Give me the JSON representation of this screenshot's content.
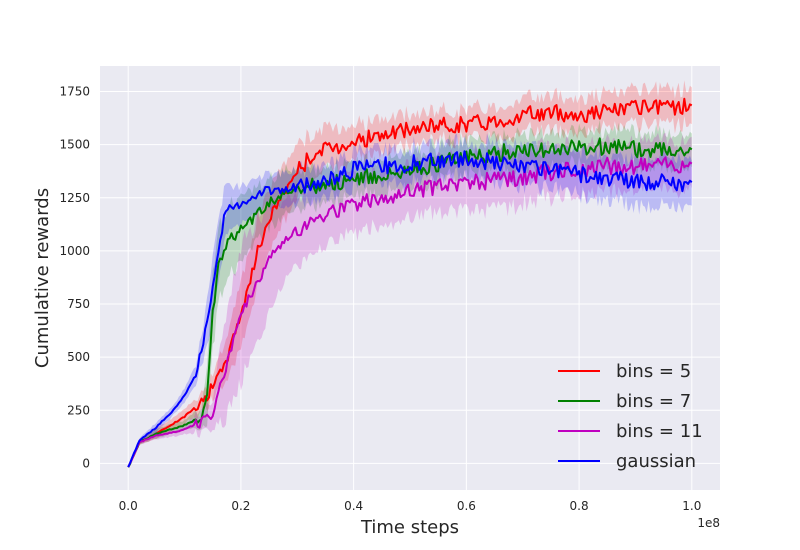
{
  "chart_data": {
    "type": "line",
    "title": "",
    "xlabel": "Time steps",
    "ylabel": "Cumulative rewards",
    "x_offset_label": "1e8",
    "xlim": [
      -0.05,
      1.05
    ],
    "ylim": [
      -125,
      1870
    ],
    "x_ticks": [
      0.0,
      0.2,
      0.4,
      0.6,
      0.8,
      1.0
    ],
    "x_tick_labels": [
      "0.0",
      "0.2",
      "0.4",
      "0.6",
      "0.8",
      "1.0"
    ],
    "y_ticks": [
      0,
      250,
      500,
      750,
      1000,
      1250,
      1500,
      1750
    ],
    "y_tick_labels": [
      "0",
      "250",
      "500",
      "750",
      "1000",
      "1250",
      "1500",
      "1750"
    ],
    "grid": true,
    "legend_position": "lower-right",
    "series": [
      {
        "name": "bins = 5",
        "color": "#ff0000",
        "x": [
          0.0,
          0.02,
          0.05,
          0.1,
          0.14,
          0.17,
          0.19,
          0.21,
          0.23,
          0.25,
          0.27,
          0.3,
          0.33,
          0.36,
          0.4,
          0.45,
          0.5,
          0.55,
          0.6,
          0.65,
          0.7,
          0.75,
          0.8,
          0.85,
          0.9,
          0.95,
          1.0
        ],
        "y": [
          -20,
          100,
          140,
          220,
          320,
          450,
          620,
          800,
          1000,
          1150,
          1250,
          1380,
          1460,
          1480,
          1520,
          1540,
          1570,
          1590,
          1600,
          1610,
          1640,
          1650,
          1640,
          1660,
          1670,
          1670,
          1690
        ],
        "band": [
          0,
          10,
          20,
          30,
          40,
          80,
          120,
          140,
          140,
          130,
          120,
          110,
          90,
          80,
          70,
          70,
          60,
          60,
          60,
          60,
          70,
          70,
          70,
          70,
          70,
          70,
          70
        ]
      },
      {
        "name": "bins = 7",
        "color": "#008000",
        "x": [
          0.0,
          0.02,
          0.05,
          0.1,
          0.13,
          0.14,
          0.15,
          0.16,
          0.18,
          0.2,
          0.22,
          0.25,
          0.28,
          0.3,
          0.35,
          0.4,
          0.45,
          0.5,
          0.55,
          0.6,
          0.65,
          0.7,
          0.75,
          0.8,
          0.85,
          0.9,
          0.95,
          1.0
        ],
        "y": [
          -20,
          100,
          140,
          180,
          220,
          300,
          700,
          950,
          1050,
          1100,
          1150,
          1230,
          1270,
          1290,
          1320,
          1330,
          1360,
          1380,
          1410,
          1440,
          1460,
          1470,
          1480,
          1490,
          1490,
          1480,
          1480,
          1480
        ],
        "band": [
          0,
          10,
          20,
          20,
          40,
          120,
          150,
          150,
          140,
          130,
          110,
          100,
          90,
          80,
          70,
          70,
          70,
          70,
          70,
          70,
          70,
          70,
          70,
          70,
          70,
          70,
          70,
          70
        ]
      },
      {
        "name": "bins = 11",
        "color": "#c000c0",
        "x": [
          0.0,
          0.02,
          0.05,
          0.1,
          0.15,
          0.17,
          0.2,
          0.23,
          0.26,
          0.3,
          0.35,
          0.4,
          0.45,
          0.5,
          0.55,
          0.6,
          0.65,
          0.7,
          0.75,
          0.8,
          0.85,
          0.9,
          0.95,
          1.0
        ],
        "y": [
          -20,
          100,
          130,
          160,
          220,
          420,
          700,
          850,
          1000,
          1100,
          1170,
          1210,
          1250,
          1280,
          1300,
          1320,
          1330,
          1350,
          1370,
          1380,
          1400,
          1400,
          1400,
          1410
        ],
        "band": [
          0,
          10,
          15,
          20,
          60,
          200,
          280,
          260,
          200,
          140,
          130,
          120,
          110,
          110,
          110,
          110,
          110,
          110,
          100,
          100,
          100,
          100,
          100,
          100
        ]
      },
      {
        "name": "gaussian",
        "color": "#0000ff",
        "x": [
          0.0,
          0.02,
          0.05,
          0.08,
          0.1,
          0.12,
          0.14,
          0.15,
          0.16,
          0.17,
          0.18,
          0.2,
          0.22,
          0.25,
          0.28,
          0.3,
          0.35,
          0.4,
          0.45,
          0.5,
          0.55,
          0.6,
          0.65,
          0.7,
          0.75,
          0.8,
          0.85,
          0.9,
          0.95,
          1.0
        ],
        "y": [
          -20,
          110,
          170,
          250,
          320,
          420,
          650,
          850,
          1000,
          1150,
          1200,
          1230,
          1260,
          1280,
          1290,
          1300,
          1330,
          1380,
          1400,
          1410,
          1430,
          1430,
          1420,
          1400,
          1380,
          1360,
          1340,
          1330,
          1320,
          1320
        ],
        "band": [
          0,
          10,
          20,
          20,
          30,
          40,
          90,
          130,
          140,
          110,
          90,
          80,
          70,
          70,
          70,
          70,
          70,
          70,
          70,
          70,
          70,
          70,
          80,
          80,
          80,
          90,
          90,
          100,
          100,
          100
        ]
      }
    ]
  }
}
